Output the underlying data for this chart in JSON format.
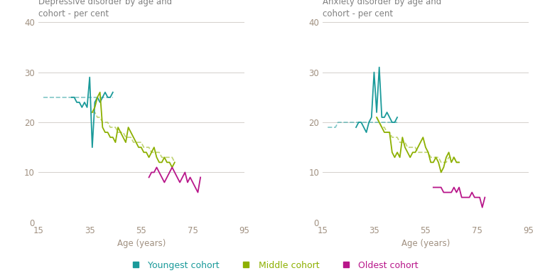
{
  "title_left": "Depressive disorder by age and\ncohort - per cent",
  "title_right": "Anxiety disorder by age and\ncohort - per cent",
  "xlabel": "Age (years)",
  "xlim": [
    15,
    95
  ],
  "ylim": [
    0,
    40
  ],
  "yticks": [
    0,
    10,
    20,
    30,
    40
  ],
  "xticks": [
    15,
    35,
    55,
    75,
    95
  ],
  "color_youngest": "#1a9a9a",
  "color_middle": "#8db000",
  "color_oldest": "#b8168a",
  "color_title": "#808080",
  "color_axis": "#a09080",
  "legend_youngest": "Youngest cohort",
  "legend_middle": "Middle cohort",
  "legend_oldest": "Oldest cohort",
  "dep_youngest_solid_x": [
    28,
    29,
    30,
    31,
    32,
    33,
    34,
    35,
    36,
    37,
    38,
    39,
    40,
    41,
    42,
    43,
    44
  ],
  "dep_youngest_solid_y": [
    25,
    25,
    24,
    24,
    23,
    24,
    23,
    29,
    15,
    24,
    25,
    24,
    25,
    26,
    25,
    25,
    26
  ],
  "dep_youngest_dash_x": [
    17,
    18,
    19,
    20,
    21,
    22,
    23,
    24,
    25,
    26,
    27,
    28,
    29,
    30,
    31,
    32,
    33,
    34,
    35,
    36,
    37,
    38,
    39,
    40,
    41,
    42,
    43,
    44
  ],
  "dep_youngest_dash_y": [
    25,
    25,
    25,
    25,
    25,
    25,
    25,
    25,
    25,
    25,
    25,
    25,
    25,
    25,
    25,
    25,
    25,
    25,
    25,
    25,
    25,
    25,
    25,
    25,
    25,
    25,
    25,
    25
  ],
  "dep_middle_solid_x": [
    36,
    37,
    38,
    39,
    40,
    41,
    42,
    43,
    44,
    45,
    46,
    47,
    48,
    49,
    50,
    51,
    52,
    53,
    54,
    55,
    56,
    57,
    58,
    59,
    60,
    61,
    62,
    63,
    64,
    65,
    66,
    67,
    68
  ],
  "dep_middle_solid_y": [
    22,
    23,
    25,
    26,
    19,
    18,
    18,
    17,
    17,
    16,
    19,
    18,
    17,
    16,
    19,
    18,
    17,
    16,
    15,
    15,
    14,
    14,
    13,
    14,
    15,
    13,
    12,
    12,
    13,
    12,
    12,
    11,
    12
  ],
  "dep_middle_dash_x": [
    36,
    37,
    38,
    39,
    40,
    41,
    42,
    43,
    44,
    45,
    46,
    47,
    48,
    49,
    50,
    51,
    52,
    53,
    54,
    55,
    56,
    57,
    58,
    59,
    60,
    61,
    62,
    63,
    64,
    65,
    66,
    67,
    68
  ],
  "dep_middle_dash_y": [
    22,
    22,
    21,
    21,
    20,
    20,
    20,
    19,
    19,
    19,
    18,
    18,
    18,
    17,
    17,
    17,
    16,
    16,
    16,
    16,
    15,
    15,
    15,
    14,
    14,
    14,
    14,
    13,
    13,
    13,
    13,
    13,
    12
  ],
  "dep_oldest_solid_x": [
    58,
    59,
    60,
    61,
    62,
    63,
    64,
    65,
    66,
    67,
    68,
    69,
    70,
    71,
    72,
    73,
    74,
    75,
    76,
    77,
    78
  ],
  "dep_oldest_solid_y": [
    9,
    10,
    10,
    11,
    10,
    9,
    8,
    9,
    10,
    11,
    10,
    9,
    8,
    9,
    10,
    8,
    9,
    8,
    7,
    6,
    9
  ],
  "anx_youngest_solid_x": [
    28,
    29,
    30,
    31,
    32,
    33,
    34,
    35,
    36,
    37,
    38,
    39,
    40,
    41,
    42,
    43,
    44
  ],
  "anx_youngest_solid_y": [
    19,
    20,
    20,
    19,
    18,
    20,
    21,
    30,
    22,
    31,
    21,
    21,
    22,
    21,
    20,
    20,
    21
  ],
  "anx_youngest_dash_x": [
    17,
    18,
    19,
    20,
    21,
    22,
    23,
    24,
    25,
    26,
    27,
    28,
    29,
    30,
    31,
    32,
    33,
    34,
    35,
    36,
    37,
    38,
    39,
    40,
    41,
    42,
    43,
    44
  ],
  "anx_youngest_dash_y": [
    19,
    19,
    19,
    19,
    20,
    20,
    20,
    20,
    20,
    20,
    20,
    20,
    20,
    20,
    20,
    20,
    20,
    20,
    20,
    20,
    20,
    20,
    20,
    20,
    20,
    20,
    20,
    20
  ],
  "anx_middle_solid_x": [
    36,
    37,
    38,
    39,
    40,
    41,
    42,
    43,
    44,
    45,
    46,
    47,
    48,
    49,
    50,
    51,
    52,
    53,
    54,
    55,
    56,
    57,
    58,
    59,
    60,
    61,
    62,
    63,
    64,
    65,
    66,
    67,
    68
  ],
  "anx_middle_solid_y": [
    21,
    20,
    19,
    18,
    18,
    18,
    14,
    13,
    14,
    13,
    17,
    15,
    14,
    13,
    14,
    14,
    15,
    16,
    17,
    15,
    14,
    12,
    12,
    13,
    12,
    10,
    11,
    13,
    14,
    12,
    13,
    12,
    12
  ],
  "anx_middle_dash_x": [
    36,
    37,
    38,
    39,
    40,
    41,
    42,
    43,
    44,
    45,
    46,
    47,
    48,
    49,
    50,
    51,
    52,
    53,
    54,
    55,
    56,
    57,
    58,
    59,
    60,
    61,
    62,
    63,
    64,
    65,
    66,
    67,
    68
  ],
  "anx_middle_dash_y": [
    21,
    20,
    19,
    19,
    18,
    18,
    17,
    17,
    17,
    16,
    16,
    16,
    15,
    15,
    15,
    15,
    14,
    14,
    14,
    14,
    14,
    13,
    13,
    13,
    13,
    12,
    12,
    12,
    13,
    13,
    13,
    12,
    12
  ],
  "anx_oldest_solid_x": [
    58,
    59,
    60,
    61,
    62,
    63,
    64,
    65,
    66,
    67,
    68,
    69,
    70,
    71,
    72,
    73,
    74,
    75,
    76,
    77,
    78
  ],
  "anx_oldest_solid_y": [
    7,
    7,
    7,
    7,
    6,
    6,
    6,
    6,
    7,
    6,
    7,
    5,
    5,
    5,
    5,
    6,
    5,
    5,
    5,
    3,
    5
  ],
  "background_color": "#ffffff",
  "grid_color": "#d4d0cc",
  "figwidth": 7.67,
  "figheight": 3.91,
  "dpi": 100
}
